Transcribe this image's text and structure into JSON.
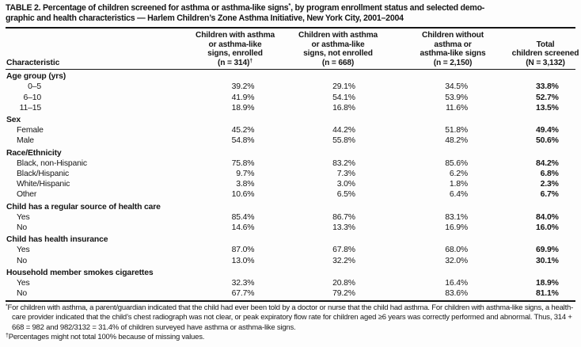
{
  "title": {
    "line1_pre_star": "TABLE 2. Percentage of children screened for asthma or asthma-like signs",
    "star": "*",
    "line1_post_star": ", by program enrollment status and selected demo-",
    "line2": "graphic and health characteristics — Harlem Children’s Zone Asthma Initiative, New York City, 2001–2004"
  },
  "table": {
    "row_header_label": "Characteristic",
    "columns": [
      {
        "lines": [
          "Children with asthma",
          "or asthma-like",
          "signs, enrolled",
          "(n = 314)"
        ],
        "sup": "†"
      },
      {
        "lines": [
          "Children with asthma",
          "or asthma-like",
          "signs, not enrolled",
          "(n = 668)"
        ],
        "sup": ""
      },
      {
        "lines": [
          "Children without",
          "asthma or",
          "asthma-like signs",
          "(n = 2,150)"
        ],
        "sup": ""
      },
      {
        "lines": [
          "Total",
          "children screened",
          "(N = 3,132)"
        ],
        "sup": ""
      }
    ],
    "sections": [
      {
        "header": "Age group (yrs)",
        "rows": [
          {
            "label": "0–5",
            "values": [
              "39.2%",
              "29.1%",
              "34.5%",
              "33.8%"
            ]
          },
          {
            "label": "6–10",
            "values": [
              "41.9%",
              "54.1%",
              "53.9%",
              "52.7%"
            ]
          },
          {
            "label": "11–15",
            "values": [
              "18.9%",
              "16.8%",
              "11.6%",
              "13.5%"
            ]
          }
        ]
      },
      {
        "header": "Sex",
        "rows": [
          {
            "label": "Female",
            "values": [
              "45.2%",
              "44.2%",
              "51.8%",
              "49.4%"
            ]
          },
          {
            "label": "Male",
            "values": [
              "54.8%",
              "55.8%",
              "48.2%",
              "50.6%"
            ]
          }
        ]
      },
      {
        "header": "Race/Ethnicity",
        "rows": [
          {
            "label": "Black, non-Hispanic",
            "values": [
              "75.8%",
              "83.2%",
              "85.6%",
              "84.2%"
            ]
          },
          {
            "label": "Black/Hispanic",
            "values": [
              "9.7%",
              "7.3%",
              "6.2%",
              "6.8%"
            ]
          },
          {
            "label": "White/Hispanic",
            "values": [
              "3.8%",
              "3.0%",
              "1.8%",
              "2.3%"
            ]
          },
          {
            "label": "Other",
            "values": [
              "10.6%",
              "6.5%",
              "6.4%",
              "6.7%"
            ]
          }
        ]
      },
      {
        "header": "Child has a regular source of health care",
        "rows": [
          {
            "label": "Yes",
            "values": [
              "85.4%",
              "86.7%",
              "83.1%",
              "84.0%"
            ]
          },
          {
            "label": "No",
            "values": [
              "14.6%",
              "13.3%",
              "16.9%",
              "16.0%"
            ]
          }
        ]
      },
      {
        "header": "Child has health insurance",
        "rows": [
          {
            "label": "Yes",
            "values": [
              "87.0%",
              "67.8%",
              "68.0%",
              "69.9%"
            ]
          },
          {
            "label": "No",
            "values": [
              "13.0%",
              "32.2%",
              "32.0%",
              "30.1%"
            ]
          }
        ]
      },
      {
        "header": "Household member smokes cigarettes",
        "rows": [
          {
            "label": "Yes",
            "values": [
              "32.3%",
              "20.8%",
              "16.4%",
              "18.9%"
            ]
          },
          {
            "label": "No",
            "values": [
              "67.7%",
              "79.2%",
              "83.6%",
              "81.1%"
            ]
          }
        ]
      }
    ]
  },
  "footnotes": [
    {
      "marker": "*",
      "text": "For children with asthma, a parent/guardian indicated that the child had ever been told by a doctor or nurse that the child had asthma. For children with asthma-like signs, a health-care provider indicated that the child’s chest radiograph was not clear, or peak expiratory flow rate for children aged ≥6 years was correctly performed and abnormal. Thus, 314 + 668 = 982 and 982/3132 = 31.4% of children surveyed have asthma or asthma-like signs."
    },
    {
      "marker": "†",
      "text": "Percentages might not total 100% because of missing values."
    }
  ]
}
